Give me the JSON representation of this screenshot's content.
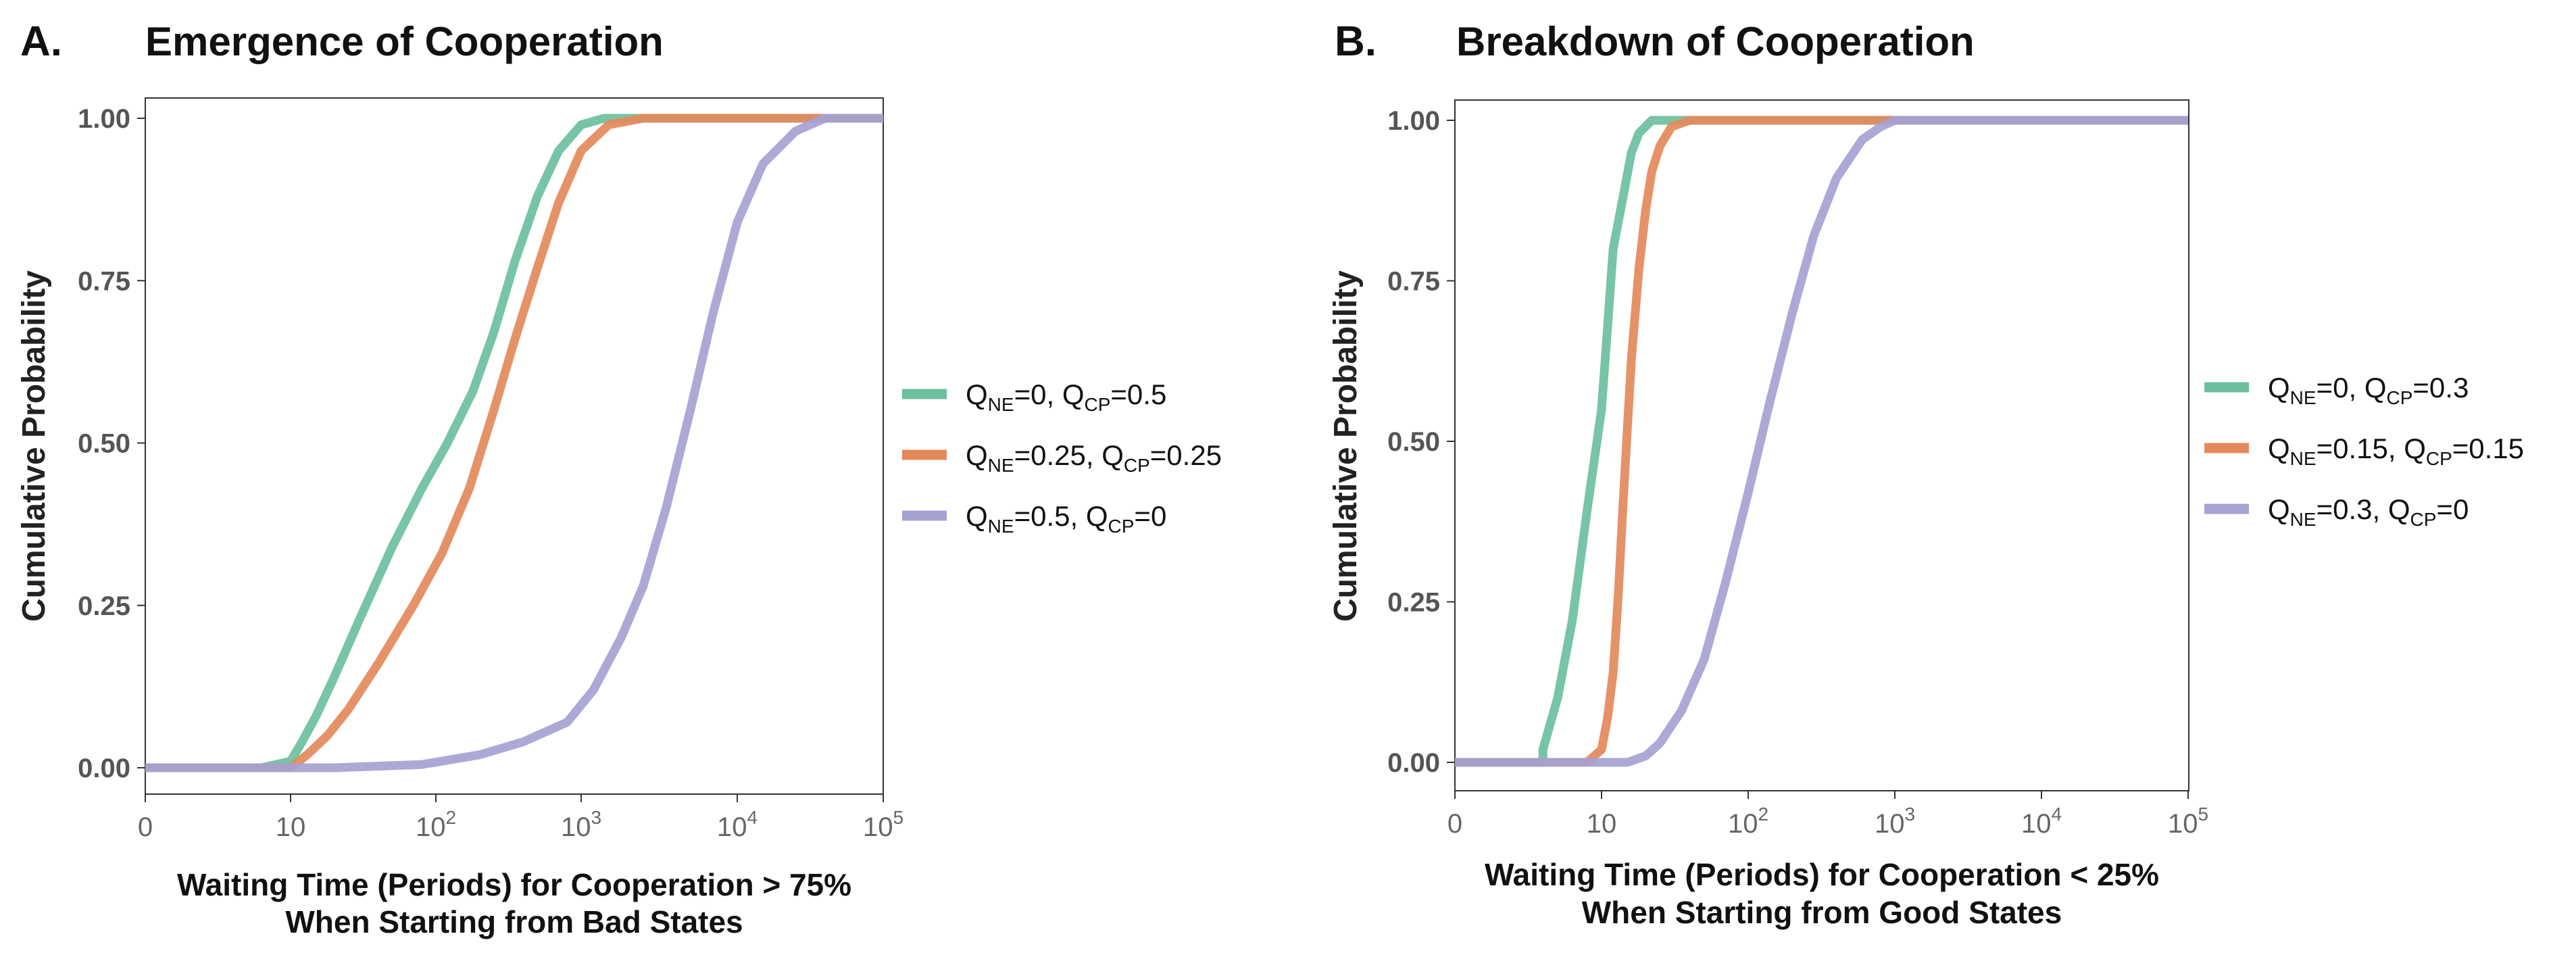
{
  "chart_data": [
    {
      "type": "line",
      "panel": "A.",
      "title": "Emergence of Cooperation",
      "xlabel": [
        "Waiting Time (Periods) for Cooperation > 75%",
        "When Starting from Bad States"
      ],
      "ylabel": "Cumulative Probability",
      "x_scale": "log (with 0 at origin)",
      "x_ticks": [
        "0",
        "10",
        "10^2",
        "10^3",
        "10^4",
        "10^5"
      ],
      "y_ticks": [
        "0.00",
        "0.25",
        "0.50",
        "0.75",
        "1.00"
      ],
      "ylim": [
        0,
        1
      ],
      "grid": false,
      "legend_position": "right",
      "series": [
        {
          "name": "Q_NE=0,  Q_CP=0.5",
          "name_parts": {
            "q1": "Q",
            "s1": "NE",
            "v1": "=0,  ",
            "q2": "Q",
            "s2": "CP",
            "v2": "=0.5"
          },
          "color": "#6dbf9e",
          "points": [
            [
              0,
              0
            ],
            [
              8,
              0
            ],
            [
              10,
              0.01
            ],
            [
              12,
              0.04
            ],
            [
              15,
              0.08
            ],
            [
              20,
              0.14
            ],
            [
              30,
              0.23
            ],
            [
              50,
              0.34
            ],
            [
              80,
              0.43
            ],
            [
              120,
              0.5
            ],
            [
              180,
              0.58
            ],
            [
              250,
              0.67
            ],
            [
              350,
              0.78
            ],
            [
              500,
              0.88
            ],
            [
              700,
              0.95
            ],
            [
              1000,
              0.99
            ],
            [
              1400,
              1
            ],
            [
              100000,
              1
            ]
          ]
        },
        {
          "name": "Q_NE=0.25, Q_CP=0.25",
          "name_parts": {
            "q1": "Q",
            "s1": "NE",
            "v1": "=0.25, ",
            "q2": "Q",
            "s2": "CP",
            "v2": "=0.25"
          },
          "color": "#e4895b",
          "points": [
            [
              0,
              0
            ],
            [
              10,
              0
            ],
            [
              13,
              0.02
            ],
            [
              18,
              0.05
            ],
            [
              25,
              0.09
            ],
            [
              40,
              0.16
            ],
            [
              70,
              0.25
            ],
            [
              110,
              0.33
            ],
            [
              170,
              0.43
            ],
            [
              250,
              0.55
            ],
            [
              350,
              0.66
            ],
            [
              500,
              0.77
            ],
            [
              700,
              0.87
            ],
            [
              1000,
              0.95
            ],
            [
              1500,
              0.99
            ],
            [
              2500,
              1
            ],
            [
              100000,
              1
            ]
          ]
        },
        {
          "name": "Q_NE=0.5,  Q_CP=0",
          "name_parts": {
            "q1": "Q",
            "s1": "NE",
            "v1": "=0.5,  ",
            "q2": "Q",
            "s2": "CP",
            "v2": "=0"
          },
          "color": "#a5a2d4",
          "points": [
            [
              0,
              0
            ],
            [
              20,
              0
            ],
            [
              80,
              0.005
            ],
            [
              200,
              0.02
            ],
            [
              400,
              0.04
            ],
            [
              800,
              0.07
            ],
            [
              1200,
              0.12
            ],
            [
              1800,
              0.2
            ],
            [
              2500,
              0.28
            ],
            [
              3500,
              0.4
            ],
            [
              5000,
              0.55
            ],
            [
              7000,
              0.7
            ],
            [
              10000,
              0.84
            ],
            [
              15000,
              0.93
            ],
            [
              25000,
              0.98
            ],
            [
              40000,
              1
            ],
            [
              100000,
              1
            ]
          ]
        }
      ]
    },
    {
      "type": "line",
      "panel": "B.",
      "title": "Breakdown of Cooperation",
      "xlabel": [
        "Waiting Time (Periods) for Cooperation < 25%",
        "When Starting from Good States"
      ],
      "ylabel": "Cumulative Probability",
      "x_scale": "log (with 0 at origin)",
      "x_ticks": [
        "0",
        "10",
        "10^2",
        "10^3",
        "10^4",
        "10^5"
      ],
      "y_ticks": [
        "0.00",
        "0.25",
        "0.50",
        "0.75",
        "1.00"
      ],
      "ylim": [
        0,
        1
      ],
      "grid": false,
      "legend_position": "right",
      "series": [
        {
          "name": "Q_NE=0,  Q_CP=0.3",
          "name_parts": {
            "q1": "Q",
            "s1": "NE",
            "v1": "=0,  ",
            "q2": "Q",
            "s2": "CP",
            "v2": "=0.3"
          },
          "color": "#6dbf9e",
          "points": [
            [
              0,
              0
            ],
            [
              6,
              0
            ],
            [
              6,
              0.02
            ],
            [
              7,
              0.1
            ],
            [
              8,
              0.22
            ],
            [
              9,
              0.39
            ],
            [
              10,
              0.55
            ],
            [
              11,
              0.68
            ],
            [
              12,
              0.8
            ],
            [
              14,
              0.88
            ],
            [
              16,
              0.95
            ],
            [
              18,
              0.98
            ],
            [
              22,
              1
            ],
            [
              100000,
              1
            ]
          ]
        },
        {
          "name": "Q_NE=0.15, Q_CP=0.15",
          "name_parts": {
            "q1": "Q",
            "s1": "NE",
            "v1": "=0.15, ",
            "q2": "Q",
            "s2": "CP",
            "v2": "=0.15"
          },
          "color": "#e4895b",
          "points": [
            [
              0,
              0
            ],
            [
              9,
              0
            ],
            [
              10,
              0.02
            ],
            [
              11,
              0.07
            ],
            [
              12,
              0.14
            ],
            [
              13,
              0.26
            ],
            [
              14,
              0.4
            ],
            [
              15,
              0.52
            ],
            [
              16,
              0.63
            ],
            [
              18,
              0.77
            ],
            [
              20,
              0.86
            ],
            [
              22,
              0.92
            ],
            [
              25,
              0.96
            ],
            [
              30,
              0.99
            ],
            [
              40,
              1
            ],
            [
              100000,
              1
            ]
          ]
        },
        {
          "name": "Q_NE=0.3,  Q_CP=0",
          "name_parts": {
            "q1": "Q",
            "s1": "NE",
            "v1": "=0.3,  ",
            "q2": "Q",
            "s2": "CP",
            "v2": "=0"
          },
          "color": "#a5a2d4",
          "points": [
            [
              0,
              0
            ],
            [
              15,
              0
            ],
            [
              20,
              0.01
            ],
            [
              25,
              0.03
            ],
            [
              35,
              0.08
            ],
            [
              50,
              0.16
            ],
            [
              70,
              0.28
            ],
            [
              100,
              0.42
            ],
            [
              140,
              0.56
            ],
            [
              200,
              0.7
            ],
            [
              280,
              0.82
            ],
            [
              400,
              0.91
            ],
            [
              600,
              0.97
            ],
            [
              800,
              0.99
            ],
            [
              1000,
              1
            ],
            [
              100000,
              1
            ]
          ]
        }
      ]
    }
  ]
}
